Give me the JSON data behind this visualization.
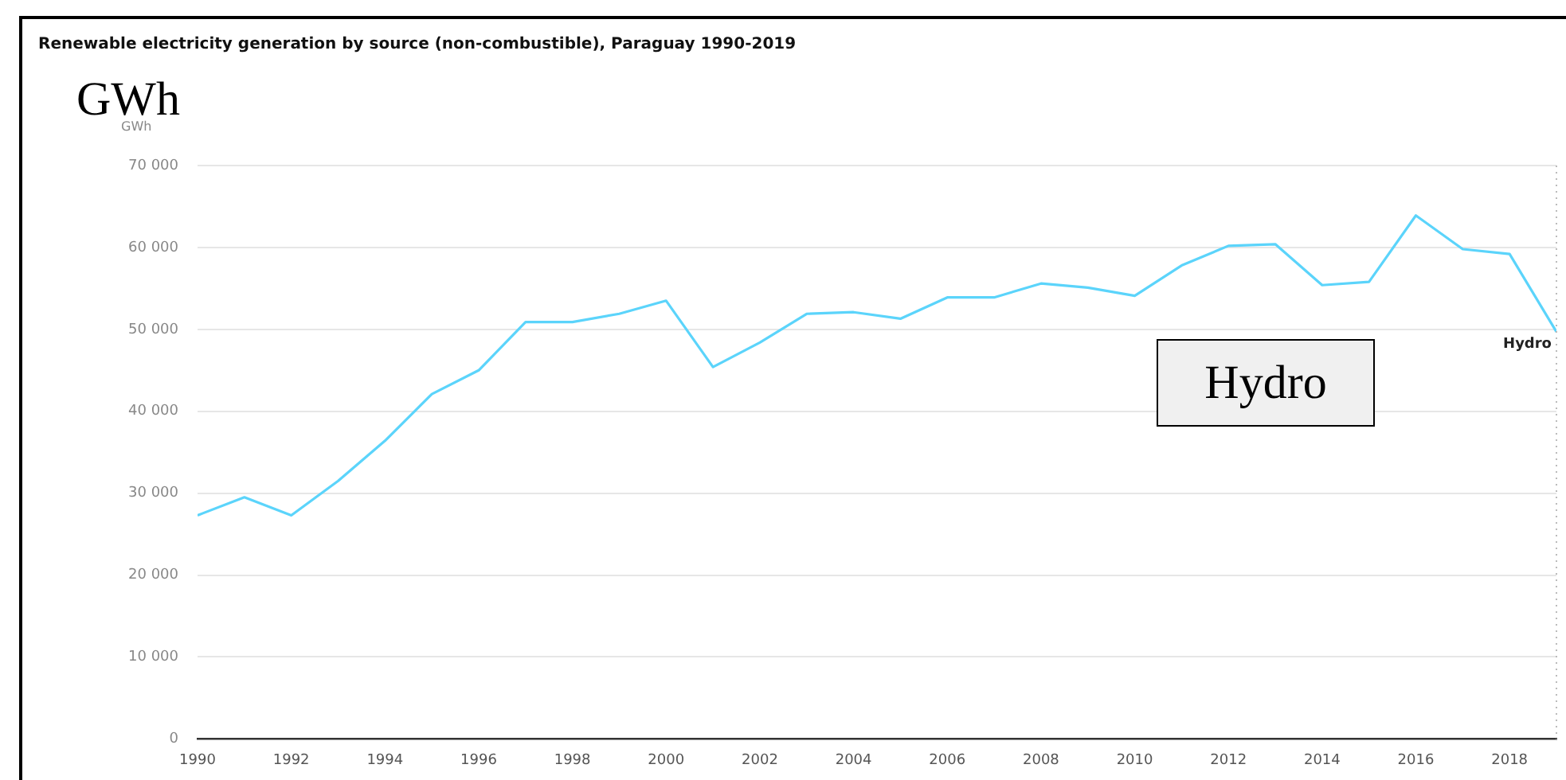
{
  "chart_data": {
    "type": "line",
    "title": "Renewable electricity generation by source (non-combustible), Paraguay 1990-2019",
    "ylabel": "GWh",
    "annotations": [
      "GWh",
      "Hydro"
    ],
    "x": [
      1990,
      1991,
      1992,
      1993,
      1994,
      1995,
      1996,
      1997,
      1998,
      1999,
      2000,
      2001,
      2002,
      2003,
      2004,
      2005,
      2006,
      2007,
      2008,
      2009,
      2010,
      2011,
      2012,
      2013,
      2014,
      2015,
      2016,
      2017,
      2018,
      2019
    ],
    "series": [
      {
        "name": "Hydro",
        "color": "#5bd4fb",
        "values": [
          27300,
          29500,
          27300,
          31500,
          36400,
          42100,
          45000,
          50900,
          50900,
          51900,
          53500,
          45400,
          48400,
          51900,
          52100,
          51300,
          53900,
          53900,
          55600,
          55100,
          54100,
          57800,
          60200,
          60400,
          55400,
          55800,
          63900,
          59800,
          59200,
          49700
        ]
      }
    ],
    "xlim": [
      1990,
      2019
    ],
    "xticks": [
      1990,
      1992,
      1994,
      1996,
      1998,
      2000,
      2002,
      2004,
      2006,
      2008,
      2010,
      2012,
      2014,
      2016,
      2018
    ],
    "ylim": [
      0,
      70000
    ],
    "yticks": [
      {
        "value": 0,
        "label": "0"
      },
      {
        "value": 10000,
        "label": "10 000"
      },
      {
        "value": 20000,
        "label": "20 000"
      },
      {
        "value": 30000,
        "label": "30 000"
      },
      {
        "value": 40000,
        "label": "40 000"
      },
      {
        "value": 50000,
        "label": "50 000"
      },
      {
        "value": 60000,
        "label": "60 000"
      },
      {
        "value": 70000,
        "label": "70 000"
      }
    ],
    "ref_lines": [
      {
        "axis": "x",
        "value": 2019,
        "line_style": "dotted",
        "color": "#bbbbbb"
      }
    ],
    "grid": "y",
    "legend": false,
    "marker": "none",
    "line_style": "solid"
  }
}
